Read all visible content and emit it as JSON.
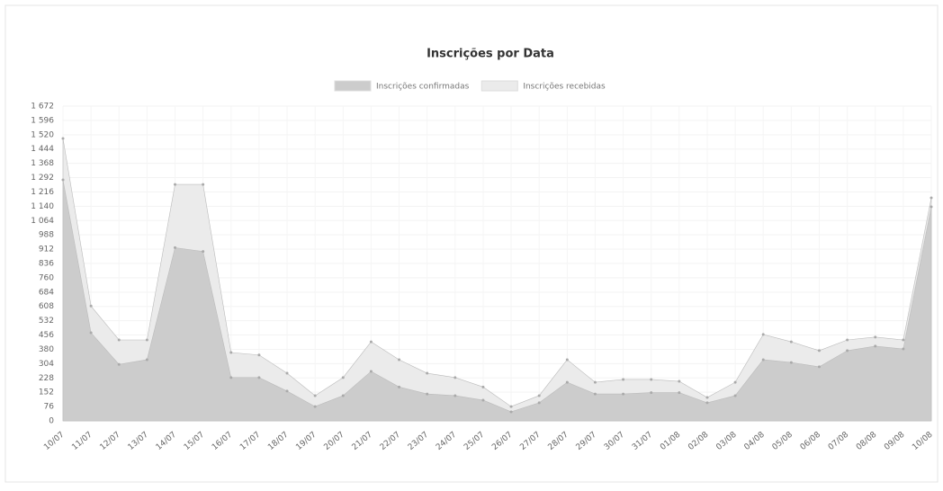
{
  "chart_data": {
    "type": "area",
    "title": "Inscrições por Data",
    "categories": [
      "10/07",
      "11/07",
      "12/07",
      "13/07",
      "14/07",
      "15/07",
      "16/07",
      "17/07",
      "18/07",
      "19/07",
      "20/07",
      "21/07",
      "22/07",
      "23/07",
      "24/07",
      "25/07",
      "26/07",
      "27/07",
      "28/07",
      "29/07",
      "30/07",
      "31/07",
      "01/08",
      "02/08",
      "03/08",
      "04/08",
      "05/08",
      "06/08",
      "07/08",
      "08/08",
      "09/08",
      "10/08"
    ],
    "series": [
      {
        "name": "Inscrições confirmadas",
        "color": "#cccccc",
        "values": [
          1280,
          468,
          300,
          325,
          920,
          900,
          230,
          230,
          158,
          76,
          134,
          263,
          180,
          143,
          134,
          110,
          48,
          96,
          205,
          143,
          143,
          150,
          150,
          96,
          134,
          325,
          310,
          287,
          373,
          397,
          382,
          1137
        ]
      },
      {
        "name": "Inscrições recebidas",
        "color": "#ebebeb",
        "values": [
          1500,
          610,
          430,
          430,
          1256,
          1256,
          363,
          350,
          253,
          134,
          230,
          420,
          325,
          253,
          230,
          180,
          76,
          134,
          325,
          205,
          220,
          220,
          210,
          124,
          205,
          459,
          420,
          373,
          430,
          445,
          430,
          1185
        ]
      }
    ],
    "ylim": [
      0,
      1672
    ],
    "yticks": [
      0,
      76,
      152,
      228,
      304,
      380,
      456,
      532,
      608,
      684,
      760,
      836,
      912,
      988,
      {
        "value": 1064,
        "label": "1 064"
      },
      {
        "value": 1140,
        "label": "1 140"
      },
      {
        "value": 1216,
        "label": "1 216"
      },
      {
        "value": 1292,
        "label": "1 292"
      },
      {
        "value": 1368,
        "label": "1 368"
      },
      {
        "value": 1444,
        "label": "1 444"
      },
      {
        "value": 1520,
        "label": "1 520"
      },
      {
        "value": 1596,
        "label": "1 596"
      },
      {
        "value": 1672,
        "label": "1 672"
      }
    ],
    "grid": true
  }
}
